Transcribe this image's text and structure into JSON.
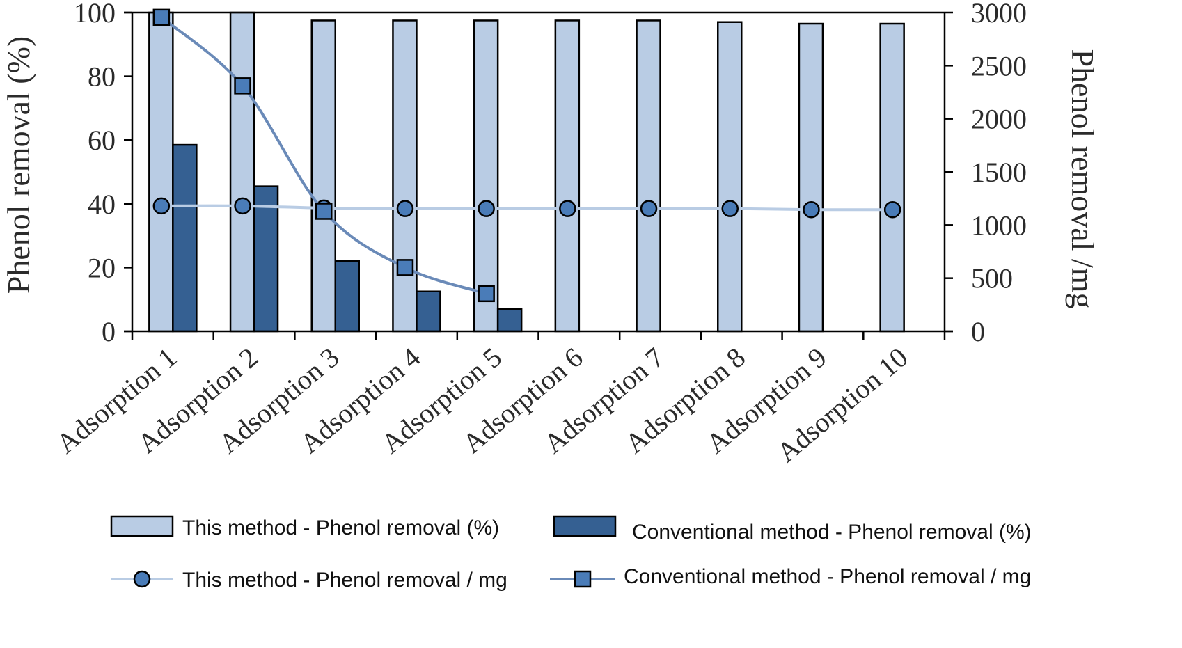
{
  "chart_data": {
    "type": "bar",
    "categories": [
      "Adsorption 1",
      "Adsorption 2",
      "Adsorption 3",
      "Adsorption 4",
      "Adsorption 5",
      "Adsorption 6",
      "Adsorption 7",
      "Adsorption 8",
      "Adsorption 9",
      "Adsorption 10"
    ],
    "ylabel_left": "Phenol removal (%)",
    "ylabel_right": "Phenol removal /mg",
    "ylim_left": [
      0,
      100
    ],
    "ylim_right": [
      0,
      3000
    ],
    "yticks_left": [
      "0",
      "20",
      "40",
      "60",
      "80",
      "100"
    ],
    "yticks_right": [
      "0",
      "500",
      "1000",
      "1500",
      "2000",
      "2500",
      "3000"
    ],
    "grid": false,
    "legend_position": "bottom",
    "series": [
      {
        "name": "This method - Phenol removal (%)",
        "kind": "bar",
        "axis": "left",
        "color": "#b9cce4",
        "values": [
          100,
          100,
          97.5,
          97.5,
          97.5,
          97.5,
          97.5,
          97,
          96.5,
          96.5
        ]
      },
      {
        "name": "Conventional method - Phenol removal (%)",
        "kind": "bar",
        "axis": "left",
        "color": "#356092",
        "values": [
          58.5,
          45.5,
          22,
          12.5,
          7,
          null,
          null,
          null,
          null,
          null
        ]
      },
      {
        "name": "This method - Phenol removal / mg",
        "kind": "line",
        "axis": "right",
        "marker": "circle",
        "color": "#b9cce4",
        "marker_color": "#4a7cb8",
        "values": [
          1180,
          1180,
          1160,
          1155,
          1155,
          1155,
          1155,
          1155,
          1145,
          1145
        ]
      },
      {
        "name": "Conventional method - Phenol removal / mg",
        "kind": "line",
        "axis": "right",
        "marker": "square",
        "color": "#6a8ab8",
        "marker_color": "#4a7cb8",
        "values": [
          2955,
          2310,
          1130,
          600,
          355,
          null,
          null,
          null,
          null,
          null
        ]
      }
    ]
  }
}
